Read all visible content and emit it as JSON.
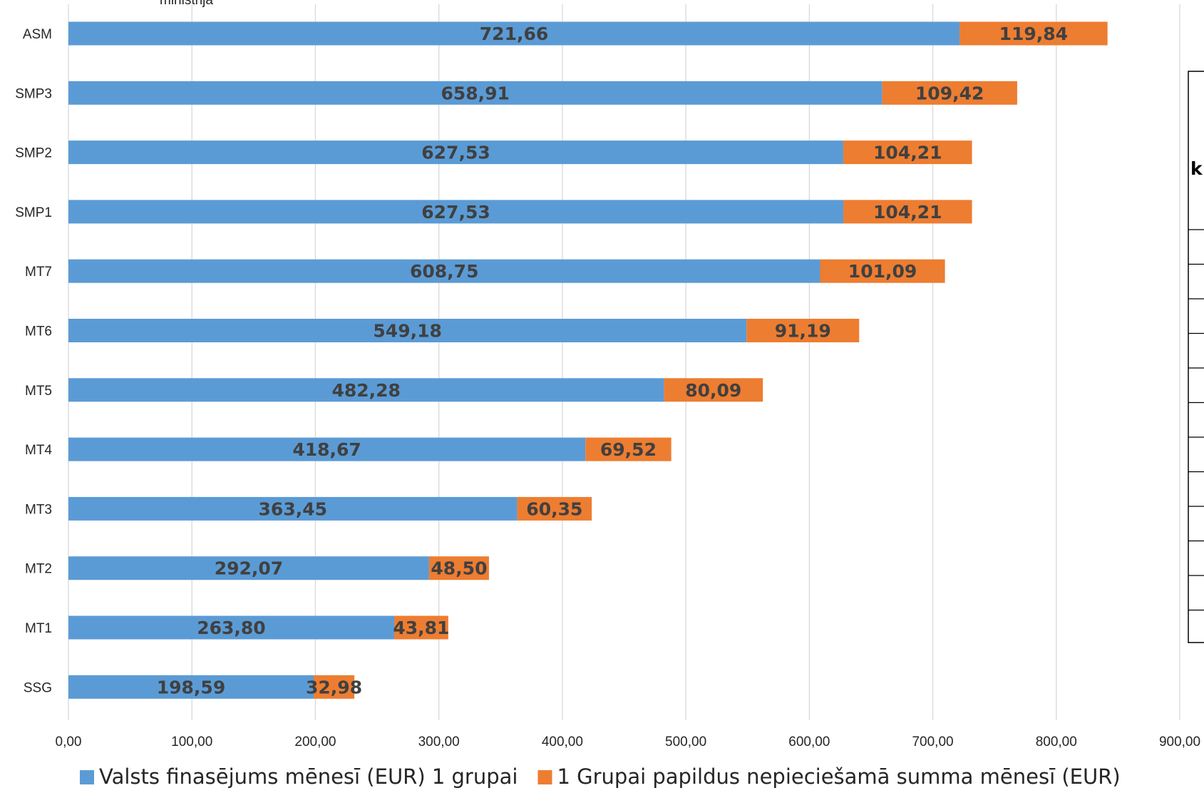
{
  "subtitle_fragment": "ministrija",
  "side_table": {
    "header_fragment": "k"
  },
  "chart_data": {
    "type": "bar",
    "orientation": "horizontal",
    "stacked": true,
    "categories": [
      "ASM",
      "SMP3",
      "SMP2",
      "SMP1",
      "MT7",
      "MT6",
      "MT5",
      "MT4",
      "MT3",
      "MT2",
      "MT1",
      "SSG"
    ],
    "series": [
      {
        "name": "Valsts finasējums mēnesī (EUR) 1 grupai",
        "color": "#5B9BD5",
        "values": [
          721.66,
          658.91,
          627.53,
          627.53,
          608.75,
          549.18,
          482.28,
          418.67,
          363.45,
          292.07,
          263.8,
          198.59
        ],
        "labels": [
          "721,66",
          "658,91",
          "627,53",
          "627,53",
          "608,75",
          "549,18",
          "482,28",
          "418,67",
          "363,45",
          "292,07",
          "263,80",
          "198,59"
        ]
      },
      {
        "name": "1 Grupai papildus nepieciešamā summa mēnesī (EUR)",
        "color": "#ED7D31",
        "values": [
          119.84,
          109.42,
          104.21,
          104.21,
          101.09,
          91.19,
          80.09,
          69.52,
          60.35,
          48.5,
          43.81,
          32.98
        ],
        "labels": [
          "119,84",
          "109,42",
          "104,21",
          "104,21",
          "101,09",
          "91,19",
          "80,09",
          "69,52",
          "60,35",
          "48,50",
          "43,81",
          "32,98"
        ]
      }
    ],
    "xlim": [
      0,
      900
    ],
    "xticks": [
      0,
      100,
      200,
      300,
      400,
      500,
      600,
      700,
      800,
      900
    ],
    "xtick_labels": [
      "0,00",
      "100,00",
      "200,00",
      "300,00",
      "400,00",
      "500,00",
      "600,00",
      "700,00",
      "800,00",
      "900,00"
    ],
    "grid": "vertical",
    "legend": "bottom"
  }
}
